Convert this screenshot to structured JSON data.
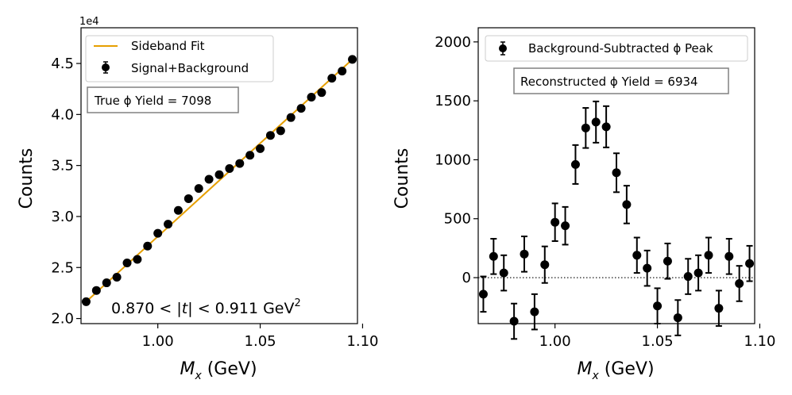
{
  "chart_data": [
    {
      "type": "scatter",
      "title": "",
      "xlabel_main": "M",
      "xlabel_sub": "x",
      "xlabel_unit": " (GeV)",
      "ylabel": "Counts",
      "offset_text": "1e4",
      "xlim": [
        0.9625,
        1.0975
      ],
      "ylim": [
        19500,
        48500
      ],
      "xticks": [
        1.0,
        1.05,
        1.1
      ],
      "xtick_labels": [
        "1.00",
        "1.05",
        "1.10"
      ],
      "yticks": [
        20000,
        25000,
        30000,
        35000,
        40000,
        45000
      ],
      "ytick_labels": [
        "2.0",
        "2.5",
        "3.0",
        "3.5",
        "4.0",
        "4.5"
      ],
      "legend": {
        "placement": "top-left",
        "entries": [
          "Sideband Fit",
          "Signal+Background"
        ]
      },
      "text_box": "True ϕ Yield = 7098",
      "annotation": {
        "prefix": "0.870 < |",
        "italic": "t",
        "suffix": "| < 0.911 GeV",
        "superscript": "2"
      },
      "series": [
        {
          "name": "Signal+Background",
          "kind": "points",
          "color": "#000000",
          "x": [
            0.965,
            0.97,
            0.975,
            0.98,
            0.985,
            0.99,
            0.995,
            1.0,
            1.005,
            1.01,
            1.015,
            1.02,
            1.025,
            1.03,
            1.035,
            1.04,
            1.045,
            1.05,
            1.055,
            1.06,
            1.065,
            1.07,
            1.075,
            1.08,
            1.085,
            1.09,
            1.095
          ],
          "y": [
            21650,
            22750,
            23500,
            24050,
            25450,
            25800,
            27100,
            28350,
            29250,
            30600,
            31750,
            32750,
            33650,
            34100,
            34700,
            35200,
            36000,
            36650,
            37950,
            38400,
            39700,
            40600,
            41700,
            42150,
            43550,
            44250,
            45400
          ]
        },
        {
          "name": "Sideband Fit",
          "kind": "line",
          "color": "#e69f00",
          "x": [
            0.965,
            1.095
          ],
          "y": [
            21650,
            45400
          ]
        }
      ]
    },
    {
      "type": "scatter",
      "title": "",
      "xlabel_main": "M",
      "xlabel_sub": "x",
      "xlabel_unit": " (GeV)",
      "ylabel": "Counts",
      "xlim": [
        0.9625,
        1.0975
      ],
      "ylim": [
        -390,
        2120
      ],
      "xticks": [
        1.0,
        1.05,
        1.1
      ],
      "xtick_labels": [
        "1.00",
        "1.05",
        "1.10"
      ],
      "yticks": [
        0,
        500,
        1000,
        1500,
        2000
      ],
      "ytick_labels": [
        "0",
        "500",
        "1000",
        "1500",
        "2000"
      ],
      "reference_line": 0,
      "legend": {
        "placement": "top-center",
        "entries": [
          "Background-Subtracted ϕ Peak"
        ]
      },
      "text_box": "Reconstructed ϕ Yield = 6934",
      "series": [
        {
          "name": "Background-Subtracted ϕ Peak",
          "kind": "errorbar",
          "color": "#000000",
          "x": [
            0.965,
            0.97,
            0.975,
            0.98,
            0.985,
            0.99,
            0.995,
            1.0,
            1.005,
            1.01,
            1.015,
            1.02,
            1.025,
            1.03,
            1.035,
            1.04,
            1.045,
            1.05,
            1.055,
            1.06,
            1.065,
            1.07,
            1.075,
            1.08,
            1.085,
            1.09,
            1.095
          ],
          "y": [
            -140,
            180,
            40,
            -370,
            200,
            -290,
            110,
            470,
            440,
            960,
            1270,
            1320,
            1280,
            890,
            620,
            190,
            80,
            -240,
            140,
            -340,
            10,
            40,
            190,
            -260,
            180,
            -50,
            120
          ],
          "yerr": [
            150,
            150,
            150,
            150,
            150,
            150,
            155,
            160,
            160,
            165,
            170,
            175,
            175,
            165,
            160,
            150,
            150,
            150,
            150,
            150,
            150,
            150,
            150,
            150,
            150,
            150,
            150
          ]
        }
      ]
    }
  ]
}
